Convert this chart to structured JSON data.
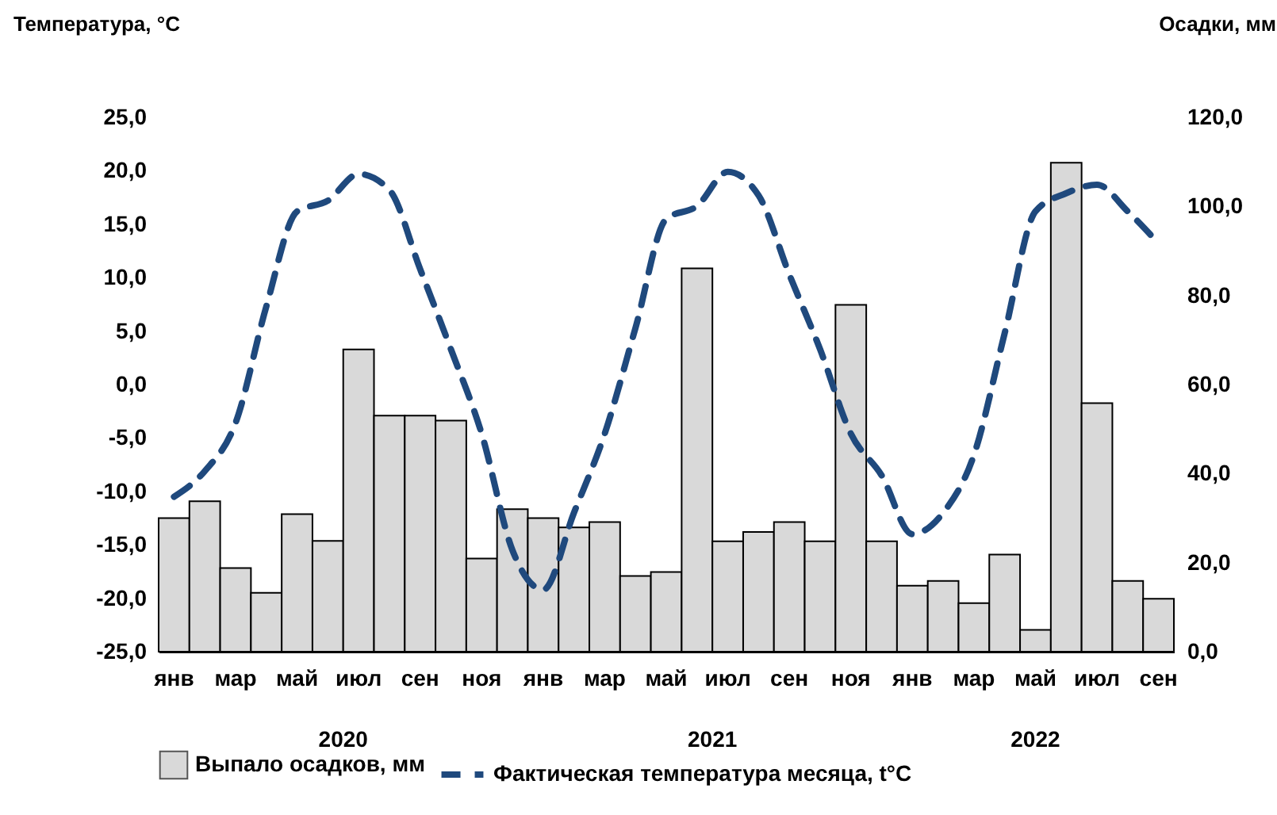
{
  "chart_data": {
    "type": "bar",
    "categories": [
      "янв",
      null,
      "мар",
      null,
      "май",
      null,
      "июл",
      null,
      "сен",
      null,
      "ноя",
      null,
      "янв",
      null,
      "мар",
      null,
      "май",
      null,
      "июл",
      null,
      "сен",
      null,
      "ноя",
      null,
      "янв",
      null,
      "мар",
      null,
      "май",
      null,
      "июл",
      null,
      "сен"
    ],
    "series": [
      {
        "name": "Выпало осадков, мм",
        "axis": "y2",
        "color": "#d9d9d9",
        "values": [
          30.0,
          33.8,
          18.8,
          13.2,
          30.9,
          24.9,
          67.9,
          53.0,
          53.0,
          51.9,
          20.9,
          32.0,
          30.0,
          27.9,
          29.1,
          17.0,
          17.9,
          86.1,
          24.8,
          26.9,
          29.1,
          24.8,
          77.9,
          24.8,
          14.8,
          15.9,
          10.9,
          21.8,
          4.9,
          109.8,
          55.8,
          15.9,
          11.9
        ]
      },
      {
        "name": "Фактическая температура месяца, t°С",
        "type": "line",
        "color": "#1f497d",
        "line_style": "dashed",
        "values": [
          -10.5,
          -8.1,
          -3.6,
          7.3,
          16.2,
          17.2,
          19.7,
          18.2,
          10.8,
          3.3,
          -4.6,
          -15.5,
          -19.2,
          -12.0,
          -4.6,
          5.3,
          15.5,
          16.7,
          19.9,
          17.7,
          10.3,
          3.3,
          -4.6,
          -8.5,
          -14.0,
          -12.0,
          -6.6,
          4.8,
          16.2,
          17.9,
          18.7,
          16.2,
          13.2
        ]
      }
    ],
    "ylabel": "Температура,  °С",
    "y2label": "Осадки, мм",
    "ylim": [
      -25,
      25
    ],
    "yticks": [
      {
        "value": -25,
        "label": "-25,0"
      },
      {
        "value": -20,
        "label": "-20,0"
      },
      {
        "value": -15,
        "label": "-15,0"
      },
      {
        "value": -10,
        "label": "-10,0"
      },
      {
        "value": -5,
        "label": "-5,0"
      },
      {
        "value": 0,
        "label": "0,0"
      },
      {
        "value": 5,
        "label": "5,0"
      },
      {
        "value": 10,
        "label": "10,0"
      },
      {
        "value": 15,
        "label": "15,0"
      },
      {
        "value": 20,
        "label": "20,0"
      },
      {
        "value": 25,
        "label": "25,0"
      }
    ],
    "y2lim": [
      0,
      120
    ],
    "y2ticks": [
      {
        "value": 0,
        "label": "0,0"
      },
      {
        "value": 20,
        "label": "20,0"
      },
      {
        "value": 40,
        "label": "40,0"
      },
      {
        "value": 60,
        "label": "60,0"
      },
      {
        "value": 80,
        "label": "80,0"
      },
      {
        "value": 100,
        "label": "100,0"
      },
      {
        "value": 120,
        "label": "120,0"
      }
    ],
    "annotations": [
      "2020",
      "2021",
      "2022"
    ],
    "legend": "bottom"
  }
}
